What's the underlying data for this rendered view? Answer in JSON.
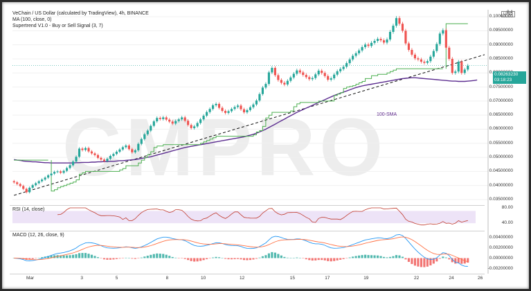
{
  "header": {
    "title": "VeChain / US Dollar (calculated by TradingView), 4h, BINANCE",
    "ma": "MA (100, close, 0)",
    "supertrend": "Supertrend V1.0 - Buy or Sell Signal (3, 7)"
  },
  "currency": "USD",
  "watermark": "CMPRO",
  "price_badge": {
    "price": "0.08263230",
    "countdown": "03:18:23"
  },
  "sma_label": "100-SMA",
  "rsi": {
    "label": "RSI (14, close)",
    "ticks": [
      "80.00",
      "40.00"
    ]
  },
  "macd": {
    "label": "MACD (12, 26, close, 9)",
    "ticks": [
      "0.00400000",
      "0.00200000",
      "0.00000000",
      "-0.00200000"
    ]
  },
  "colors": {
    "up": "#26a69a",
    "down": "#ef5350",
    "sma": "#5b2c8f",
    "supertrend": "#4caf50",
    "trend": "#111111",
    "rsi": "#c0392b",
    "macd_line": "#2196f3",
    "signal_line": "#ff7043"
  },
  "chart_data": {
    "type": "candlestick",
    "title": "VeChain / US Dollar (calculated by TradingView), 4h, BINANCE",
    "ylim": [
      0.0345,
      0.1015
    ],
    "y_ticks": [
      "0.1",
      "0.10000000",
      "0.09500000",
      "0.09000000",
      "0.08500000",
      "0.08000000",
      "0.07500000",
      "0.07000000",
      "0.06500000",
      "0.06000000",
      "0.05500000",
      "0.05000000",
      "0.04500000",
      "0.04000000",
      "0.03500000"
    ],
    "x_ticks": [
      "Mar",
      "3",
      "5",
      "8",
      "10",
      "12",
      "15",
      "17",
      "19",
      "22",
      "24",
      "26"
    ],
    "close": [
      0.0411,
      0.0405,
      0.0398,
      0.0388,
      0.0376,
      0.0392,
      0.0401,
      0.0408,
      0.0415,
      0.0421,
      0.0428,
      0.0436,
      0.0442,
      0.0448,
      0.045,
      0.0445,
      0.0452,
      0.0462,
      0.0472,
      0.0485,
      0.0502,
      0.0531,
      0.0526,
      0.0533,
      0.0521,
      0.0514,
      0.0508,
      0.0498,
      0.0492,
      0.0487,
      0.0495,
      0.0505,
      0.0512,
      0.052,
      0.0528,
      0.0536,
      0.0542,
      0.0529,
      0.0518,
      0.0525,
      0.0548,
      0.0565,
      0.0582,
      0.0595,
      0.0612,
      0.0628,
      0.064,
      0.0636,
      0.0642,
      0.0634,
      0.0627,
      0.062,
      0.0629,
      0.0635,
      0.0642,
      0.063,
      0.0615,
      0.0604,
      0.061,
      0.0622,
      0.0635,
      0.0648,
      0.0661,
      0.0672,
      0.0685,
      0.069,
      0.0676,
      0.0665,
      0.0658,
      0.0664,
      0.0672,
      0.0679,
      0.0684,
      0.0671,
      0.066,
      0.0668,
      0.0678,
      0.0688,
      0.0702,
      0.0725,
      0.0748,
      0.0761,
      0.0802,
      0.0818,
      0.0792,
      0.0775,
      0.0765,
      0.0759,
      0.0772,
      0.0784,
      0.0797,
      0.0809,
      0.0802,
      0.0793,
      0.0785,
      0.0778,
      0.0782,
      0.0795,
      0.0808,
      0.08,
      0.0789,
      0.0776,
      0.0781,
      0.0794,
      0.0806,
      0.0814,
      0.0822,
      0.0835,
      0.0848,
      0.0861,
      0.087,
      0.088,
      0.0892,
      0.0901,
      0.0896,
      0.0907,
      0.0914,
      0.0921,
      0.0916,
      0.0908,
      0.0919,
      0.0946,
      0.0968,
      0.0995,
      0.0975,
      0.095,
      0.0905,
      0.0882,
      0.0865,
      0.0852,
      0.0848,
      0.084,
      0.0836,
      0.0842,
      0.0858,
      0.0878,
      0.0903,
      0.094,
      0.0952,
      0.089,
      0.085,
      0.08,
      0.0805,
      0.084,
      0.08,
      0.0812,
      0.0826
    ],
    "sma100": [
      0.0492,
      0.049,
      0.0489,
      0.0487,
      0.0486,
      0.0485,
      0.0484,
      0.0484,
      0.0483,
      0.0482,
      0.0481,
      0.0481,
      0.048,
      0.048,
      0.048,
      0.048,
      0.048,
      0.048,
      0.048,
      0.048,
      0.0481,
      0.0481,
      0.0482,
      0.0482,
      0.0482,
      0.0483,
      0.0483,
      0.0484,
      0.0484,
      0.0485,
      0.0485,
      0.0486,
      0.0486,
      0.0487,
      0.0488,
      0.0488,
      0.0489,
      0.049,
      0.0491,
      0.0492,
      0.0494,
      0.0496,
      0.0498,
      0.05,
      0.0502,
      0.0505,
      0.0508,
      0.0511,
      0.0514,
      0.0517,
      0.052,
      0.0523,
      0.0526,
      0.0529,
      0.0532,
      0.0535,
      0.0537,
      0.0539,
      0.0541,
      0.0543,
      0.0545,
      0.0547,
      0.0549,
      0.0551,
      0.0553,
      0.0555,
      0.0557,
      0.0559,
      0.0561,
      0.0563,
      0.0565,
      0.0567,
      0.0569,
      0.0571,
      0.0573,
      0.0576,
      0.0579,
      0.0582,
      0.0586,
      0.059,
      0.0595,
      0.06,
      0.0606,
      0.0612,
      0.0618,
      0.0624,
      0.063,
      0.0636,
      0.0642,
      0.0648,
      0.0654,
      0.066,
      0.0665,
      0.067,
      0.0675,
      0.068,
      0.0685,
      0.069,
      0.0695,
      0.07,
      0.0705,
      0.071,
      0.0715,
      0.072,
      0.0724,
      0.0728,
      0.0732,
      0.0736,
      0.074,
      0.0744,
      0.0748,
      0.0751,
      0.0754,
      0.0756,
      0.0758,
      0.076,
      0.0762,
      0.0764,
      0.0766,
      0.0768,
      0.077,
      0.0772,
      0.0774,
      0.0776,
      0.0778,
      0.078,
      0.0781,
      0.0782,
      0.0783,
      0.0783,
      0.0782,
      0.0781,
      0.078,
      0.0779,
      0.0778,
      0.0777,
      0.0776,
      0.0775,
      0.0774,
      0.0773,
      0.0772,
      0.0771,
      0.0771,
      0.077,
      0.077,
      0.077,
      0.0771,
      0.0772,
      0.0773,
      0.0775
    ],
    "supertrend": [
      0.049,
      0.049,
      0.049,
      0.049,
      0.049,
      0.049,
      0.049,
      0.049,
      0.049,
      0.049,
      0.049,
      0.049,
      0.038,
      0.0385,
      0.0392,
      0.0396,
      0.04,
      0.0404,
      0.0408,
      0.0412,
      0.042,
      0.044,
      0.0445,
      0.045,
      0.045,
      0.045,
      0.045,
      0.045,
      0.045,
      0.045,
      0.045,
      0.045,
      0.045,
      0.045,
      0.0455,
      0.046,
      0.047,
      0.047,
      0.047,
      0.047,
      0.048,
      0.049,
      0.05,
      0.051,
      0.052,
      0.0535,
      0.054,
      0.054,
      0.0545,
      0.0545,
      0.0545,
      0.0545,
      0.0545,
      0.0545,
      0.0545,
      0.0545,
      0.0545,
      0.0545,
      0.0545,
      0.0545,
      0.055,
      0.0555,
      0.056,
      0.0565,
      0.057,
      0.0575,
      0.0575,
      0.0575,
      0.0575,
      0.0575,
      0.0575,
      0.0575,
      0.0575,
      0.0575,
      0.0575,
      0.0575,
      0.0575,
      0.058,
      0.059,
      0.0595,
      0.061,
      0.064,
      0.065,
      0.066,
      0.066,
      0.066,
      0.066,
      0.066,
      0.066,
      0.0665,
      0.068,
      0.069,
      0.0695,
      0.0695,
      0.0695,
      0.0695,
      0.0695,
      0.0695,
      0.07,
      0.07,
      0.07,
      0.07,
      0.07,
      0.072,
      0.0725,
      0.073,
      0.0745,
      0.075,
      0.0752,
      0.0755,
      0.076,
      0.0765,
      0.077,
      0.078,
      0.078,
      0.079,
      0.079,
      0.0795,
      0.0795,
      0.0795,
      0.08,
      0.0805,
      0.081,
      0.0815,
      0.0815,
      0.0815,
      0.0815,
      0.0815,
      0.0815,
      0.0815,
      0.0815,
      0.0815,
      0.0815,
      0.0815,
      0.0815,
      0.0815,
      0.0815,
      0.0815,
      0.0815,
      0.0975,
      0.0975,
      0.0975,
      0.0975,
      0.0975,
      0.0975,
      0.0975,
      0.0975
    ],
    "trend_line": {
      "from": [
        0,
        0.0365
      ],
      "to": [
        147,
        0.0865
      ]
    },
    "rsi_ylim": [
      20,
      90
    ],
    "macd_ylim": [
      -0.0026,
      0.0046
    ]
  }
}
